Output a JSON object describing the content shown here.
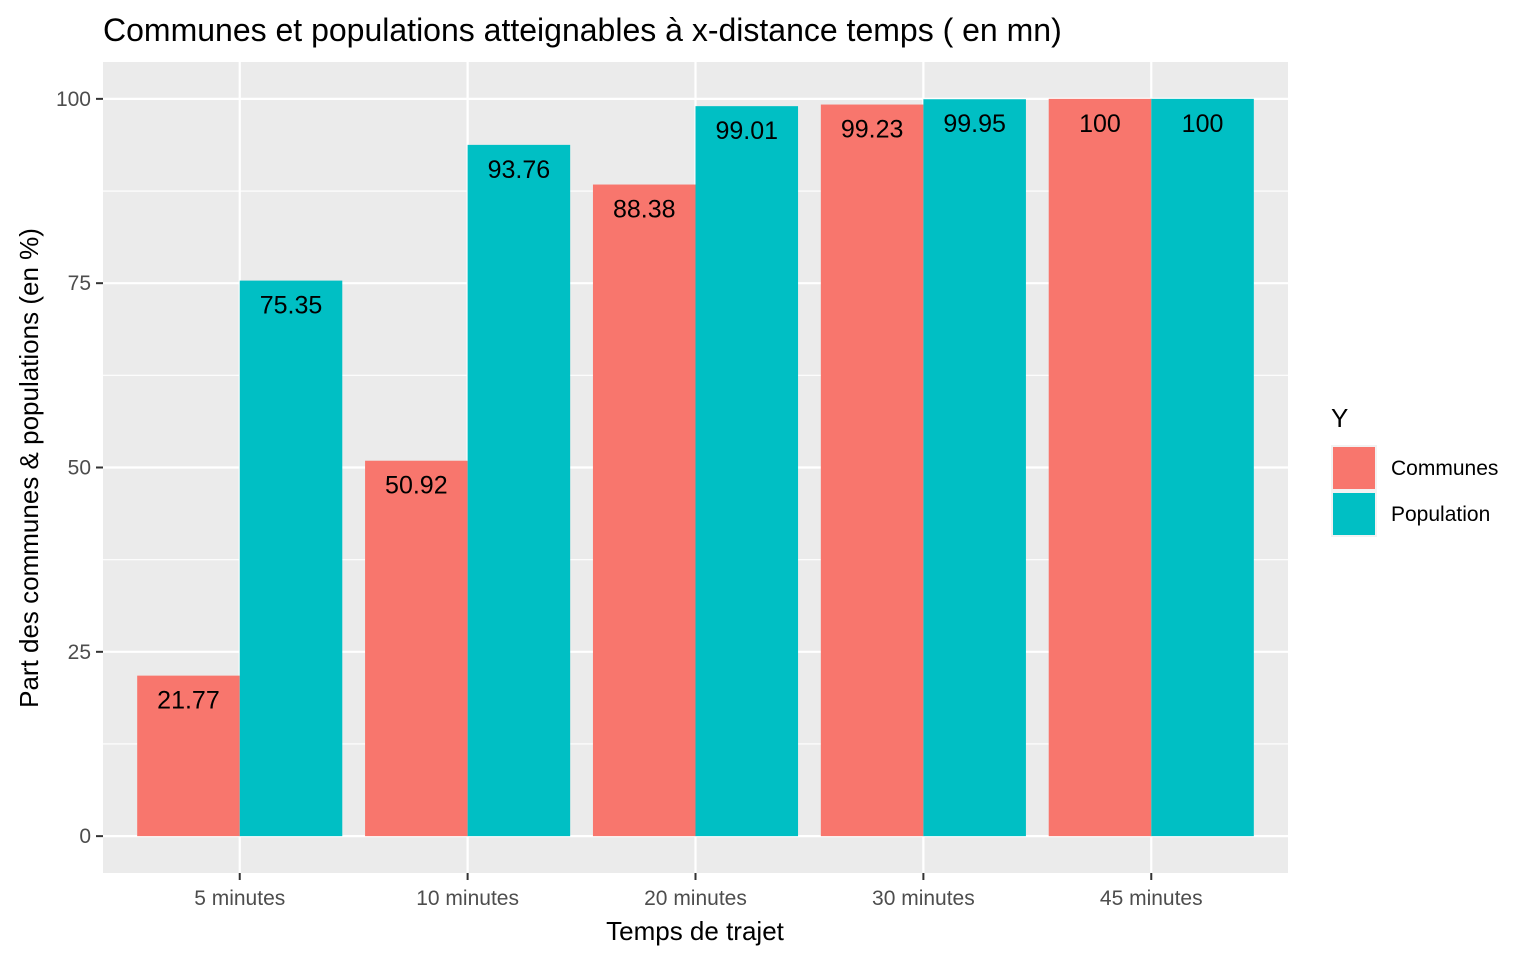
{
  "chart_data": {
    "type": "bar",
    "title": "Communes et populations atteignables à x-distance temps ( en mn)",
    "xlabel": "Temps de trajet",
    "ylabel": "Part des communes & populations (en %)",
    "categories": [
      "5 minutes",
      "10 minutes",
      "20 minutes",
      "30 minutes",
      "45 minutes"
    ],
    "series": [
      {
        "name": "Communes",
        "color": "#F8766D",
        "values": [
          21.77,
          50.92,
          88.38,
          99.23,
          100
        ],
        "labels": [
          "21.77",
          "50.92",
          "88.38",
          "99.23",
          "100"
        ]
      },
      {
        "name": "Population",
        "color": "#00BFC4",
        "values": [
          75.35,
          93.76,
          99.01,
          99.95,
          100
        ],
        "labels": [
          "75.35",
          "93.76",
          "99.01",
          "99.95",
          "100"
        ]
      }
    ],
    "ylim": [
      -5,
      105
    ],
    "yticks": [
      0,
      25,
      50,
      75,
      100
    ],
    "ytick_labels": [
      "0",
      "25",
      "50",
      "75",
      "100"
    ],
    "legend": {
      "title": "Y",
      "placement": "right"
    },
    "grid": true,
    "panel_background": "#EBEBEB",
    "grid_color": "#FFFFFF"
  }
}
